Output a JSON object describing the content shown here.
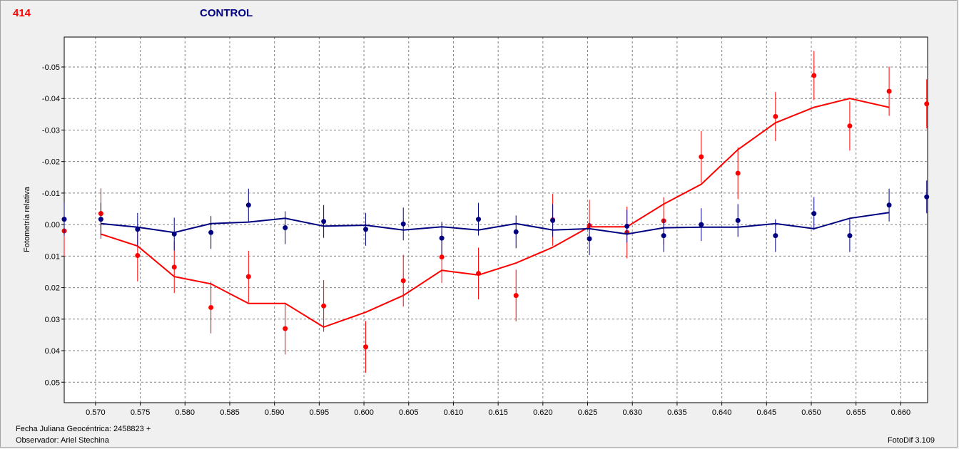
{
  "header": {
    "star_id": "414",
    "title": "CONTROL"
  },
  "colors": {
    "star": "#ff0000",
    "control": "#000080",
    "star_label": "#ff0000",
    "title_label": "#000080"
  },
  "footer": {
    "date_label": "Fecha Juliana Geocéntrica: 2458823 +",
    "observer": "Observador: Ariel Stechina",
    "version": "FotoDif 3.109"
  },
  "chart_data": {
    "type": "scatter",
    "ylabel": "Fotometría relativa",
    "xlim": [
      0.5665,
      0.663
    ],
    "ylim": [
      0.0565,
      -0.0595
    ],
    "y_inverted": true,
    "grid": true,
    "xticks": [
      0.57,
      0.575,
      0.58,
      0.585,
      0.59,
      0.595,
      0.6,
      0.605,
      0.61,
      0.615,
      0.62,
      0.625,
      0.63,
      0.635,
      0.64,
      0.645,
      0.65,
      0.655,
      0.66
    ],
    "xtick_labels": [
      "0.570",
      "0.575",
      "0.580",
      "0.585",
      "0.590",
      "0.595",
      "0.600",
      "0.605",
      "0.610",
      "0.615",
      "0.620",
      "0.625",
      "0.630",
      "0.635",
      "0.640",
      "0.645",
      "0.650",
      "0.655",
      "0.660"
    ],
    "yticks": [
      -0.05,
      -0.04,
      -0.03,
      -0.02,
      -0.01,
      0.0,
      0.01,
      0.02,
      0.03,
      0.04,
      0.05
    ],
    "ytick_labels": [
      "-0.05",
      "-0.04",
      "-0.03",
      "-0.02",
      "-0.01",
      "0.00",
      "0.01",
      "0.02",
      "0.03",
      "0.04",
      "0.05"
    ],
    "series": [
      {
        "role": "star",
        "color": "#ff0000",
        "points": [
          {
            "x": 0.5665,
            "y": 0.002,
            "err": 0.008
          },
          {
            "x": 0.5706,
            "y": -0.0035,
            "err": 0.008
          },
          {
            "x": 0.5747,
            "y": 0.0098,
            "err": 0.0082
          },
          {
            "x": 0.5788,
            "y": 0.0135,
            "err": 0.0082
          },
          {
            "x": 0.5829,
            "y": 0.0263,
            "err": 0.0082
          },
          {
            "x": 0.5871,
            "y": 0.0165,
            "err": 0.0082
          },
          {
            "x": 0.5912,
            "y": 0.033,
            "err": 0.0082
          },
          {
            "x": 0.5955,
            "y": 0.0258,
            "err": 0.0082
          },
          {
            "x": 0.6002,
            "y": 0.0388,
            "err": 0.0082
          },
          {
            "x": 0.6044,
            "y": 0.0178,
            "err": 0.0082
          },
          {
            "x": 0.6087,
            "y": 0.0103,
            "err": 0.0082
          },
          {
            "x": 0.6128,
            "y": 0.0155,
            "err": 0.0082
          },
          {
            "x": 0.617,
            "y": 0.0225,
            "err": 0.0082
          },
          {
            "x": 0.6211,
            "y": -0.0015,
            "err": 0.0082
          },
          {
            "x": 0.6252,
            "y": 0.0003,
            "err": 0.0082
          },
          {
            "x": 0.6294,
            "y": 0.0025,
            "err": 0.0082
          },
          {
            "x": 0.6335,
            "y": -0.0012,
            "err": 0.0075
          },
          {
            "x": 0.6377,
            "y": -0.0215,
            "err": 0.0082
          },
          {
            "x": 0.6418,
            "y": -0.0163,
            "err": 0.0082
          },
          {
            "x": 0.646,
            "y": -0.0343,
            "err": 0.0078
          },
          {
            "x": 0.6503,
            "y": -0.0473,
            "err": 0.0078
          },
          {
            "x": 0.6543,
            "y": -0.0313,
            "err": 0.0078
          },
          {
            "x": 0.6587,
            "y": -0.0423,
            "err": 0.0078
          },
          {
            "x": 0.6629,
            "y": -0.0383,
            "err": 0.0078
          }
        ],
        "line": {
          "x": [
            0.5706,
            0.5747,
            0.5788,
            0.5829,
            0.5871,
            0.5912,
            0.5955,
            0.6002,
            0.6044,
            0.6087,
            0.6128,
            0.617,
            0.6211,
            0.6252,
            0.6294,
            0.6335,
            0.6377,
            0.6418,
            0.646,
            0.6503,
            0.6543,
            0.6587
          ],
          "y": [
            0.003,
            0.0068,
            0.0165,
            0.0188,
            0.025,
            0.025,
            0.0325,
            0.0278,
            0.0225,
            0.0145,
            0.016,
            0.0122,
            0.0072,
            0.0007,
            0.0007,
            -0.0065,
            -0.0128,
            -0.0238,
            -0.0323,
            -0.0372,
            -0.04,
            -0.0372
          ]
        }
      },
      {
        "role": "control",
        "color": "#000080",
        "points": [
          {
            "x": 0.5665,
            "y": -0.0017,
            "err": 0.0052
          },
          {
            "x": 0.5706,
            "y": -0.0017,
            "err": 0.0052
          },
          {
            "x": 0.5747,
            "y": 0.0015,
            "err": 0.0052
          },
          {
            "x": 0.5788,
            "y": 0.003,
            "err": 0.0052
          },
          {
            "x": 0.5829,
            "y": 0.0025,
            "err": 0.0052
          },
          {
            "x": 0.5871,
            "y": -0.0062,
            "err": 0.0052
          },
          {
            "x": 0.5912,
            "y": 0.001,
            "err": 0.0052
          },
          {
            "x": 0.5955,
            "y": -0.001,
            "err": 0.0052
          },
          {
            "x": 0.6002,
            "y": 0.0015,
            "err": 0.0052
          },
          {
            "x": 0.6044,
            "y": -0.0002,
            "err": 0.0052
          },
          {
            "x": 0.6087,
            "y": 0.0043,
            "err": 0.0052
          },
          {
            "x": 0.6128,
            "y": -0.0017,
            "err": 0.0052
          },
          {
            "x": 0.617,
            "y": 0.0023,
            "err": 0.0052
          },
          {
            "x": 0.6211,
            "y": -0.0013,
            "err": 0.0052
          },
          {
            "x": 0.6252,
            "y": 0.0045,
            "err": 0.0052
          },
          {
            "x": 0.6294,
            "y": 0.0005,
            "err": 0.0052
          },
          {
            "x": 0.6335,
            "y": 0.0035,
            "err": 0.0052
          },
          {
            "x": 0.6377,
            "y": 0.0,
            "err": 0.0052
          },
          {
            "x": 0.6418,
            "y": -0.0013,
            "err": 0.0052
          },
          {
            "x": 0.646,
            "y": 0.0035,
            "err": 0.0052
          },
          {
            "x": 0.6503,
            "y": -0.0035,
            "err": 0.0052
          },
          {
            "x": 0.6543,
            "y": 0.0035,
            "err": 0.0052
          },
          {
            "x": 0.6587,
            "y": -0.0062,
            "err": 0.0052
          },
          {
            "x": 0.6629,
            "y": -0.0088,
            "err": 0.0052
          }
        ],
        "line": {
          "x": [
            0.5706,
            0.5747,
            0.5788,
            0.5829,
            0.5871,
            0.5912,
            0.5955,
            0.6002,
            0.6044,
            0.6087,
            0.6128,
            0.617,
            0.6211,
            0.6252,
            0.6294,
            0.6335,
            0.6377,
            0.6418,
            0.646,
            0.6503,
            0.6543,
            0.6587
          ],
          "y": [
            -0.0003,
            0.0008,
            0.0025,
            -0.0003,
            -0.0008,
            -0.002,
            0.0005,
            0.0002,
            0.0017,
            0.0007,
            0.0017,
            -0.0003,
            0.0017,
            0.0013,
            0.003,
            0.001,
            0.0008,
            0.0008,
            -0.0003,
            0.0013,
            -0.002,
            -0.0038
          ]
        }
      }
    ]
  }
}
